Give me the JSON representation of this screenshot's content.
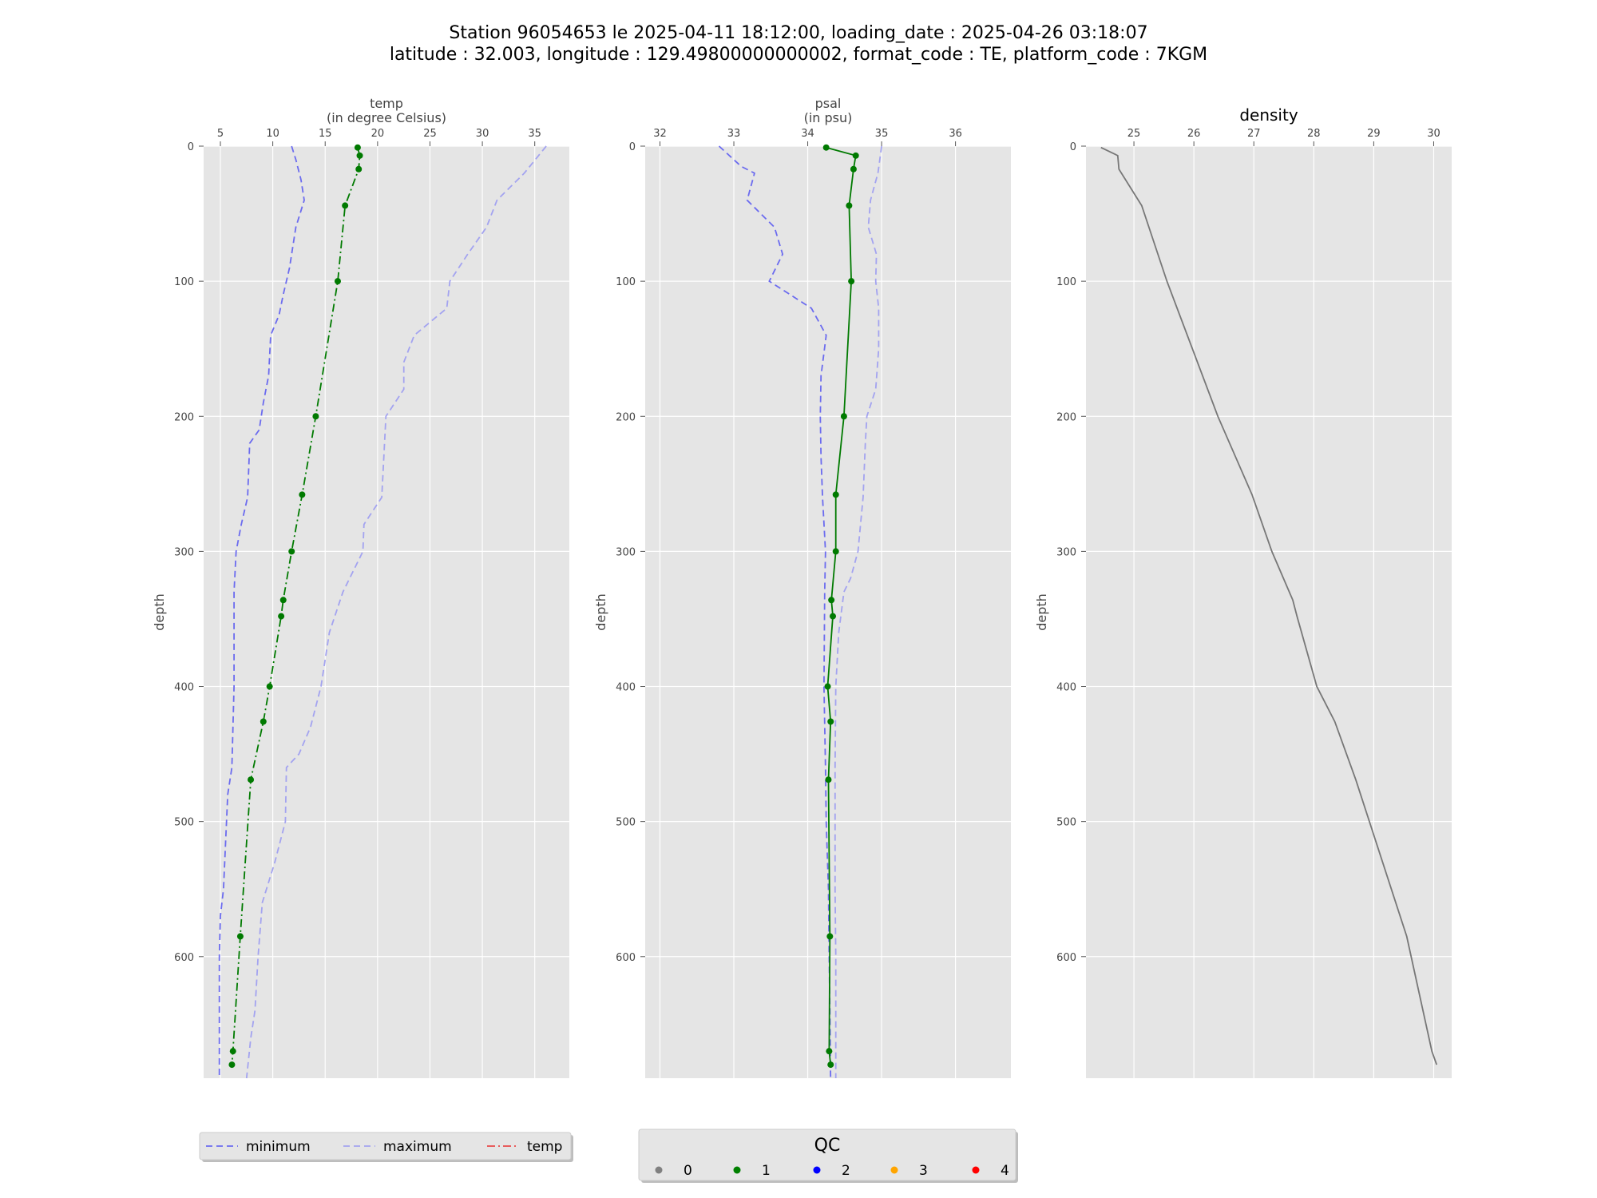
{
  "title": {
    "line1": "Station 96054653 le 2025-04-11 18:12:00, loading_date : 2025-04-26 03:18:07",
    "line2": "latitude : 32.003, longitude : 129.49800000000002, format_code : TE, platform_code : 7KGM"
  },
  "colors": {
    "panel_bg": "#e5e5e5",
    "grid": "#ffffff",
    "minimum": "#6b6bef",
    "maximum": "#a3a3f0",
    "temp_legend": "#e84a4a",
    "profile": "#007a00",
    "density": "#777777"
  },
  "chart_data": [
    {
      "type": "line",
      "name": "temp",
      "xlabel": "temp",
      "xunit": "(in degree Celsius)",
      "ylabel": "depth",
      "xlim": [
        3.4,
        38.3
      ],
      "ylim": [
        690,
        0
      ],
      "x_ticks": [
        5,
        10,
        15,
        20,
        25,
        30,
        35
      ],
      "y_ticks": [
        0,
        100,
        200,
        300,
        400,
        500,
        600
      ],
      "grid": true,
      "series": [
        {
          "name": "minimum",
          "style": "dashed",
          "color_key": "minimum",
          "points": [
            [
              11.8,
              0
            ],
            [
              12.2,
              10
            ],
            [
              12.7,
              25
            ],
            [
              13.0,
              40
            ],
            [
              12.2,
              60
            ],
            [
              11.6,
              90
            ],
            [
              11.0,
              110
            ],
            [
              10.6,
              125
            ],
            [
              9.8,
              140
            ],
            [
              9.6,
              170
            ],
            [
              9.1,
              190
            ],
            [
              8.7,
              210
            ],
            [
              7.8,
              220
            ],
            [
              7.6,
              260
            ],
            [
              7.0,
              280
            ],
            [
              6.5,
              300
            ],
            [
              6.3,
              330
            ],
            [
              6.3,
              400
            ],
            [
              6.1,
              460
            ],
            [
              5.7,
              480
            ],
            [
              5.3,
              550
            ],
            [
              5.0,
              570
            ],
            [
              4.9,
              600
            ],
            [
              4.9,
              640
            ],
            [
              4.9,
              690
            ]
          ]
        },
        {
          "name": "maximum",
          "style": "dashed",
          "color_key": "maximum",
          "points": [
            [
              36.1,
              0
            ],
            [
              34.0,
              20
            ],
            [
              31.4,
              40
            ],
            [
              30.4,
              60
            ],
            [
              28.6,
              80
            ],
            [
              26.9,
              100
            ],
            [
              26.6,
              120
            ],
            [
              23.5,
              140
            ],
            [
              22.5,
              160
            ],
            [
              22.5,
              180
            ],
            [
              20.8,
              200
            ],
            [
              20.6,
              230
            ],
            [
              20.4,
              260
            ],
            [
              18.7,
              280
            ],
            [
              18.6,
              300
            ],
            [
              16.7,
              330
            ],
            [
              15.4,
              360
            ],
            [
              14.6,
              400
            ],
            [
              13.6,
              430
            ],
            [
              12.5,
              450
            ],
            [
              11.3,
              460
            ],
            [
              11.2,
              500
            ],
            [
              10.2,
              530
            ],
            [
              9.0,
              560
            ],
            [
              8.6,
              600
            ],
            [
              8.3,
              640
            ],
            [
              7.9,
              660
            ],
            [
              7.5,
              690
            ]
          ]
        },
        {
          "name": "temp",
          "style": "dashdot",
          "color_key": "profile",
          "markers": true,
          "points": [
            [
              18.1,
              1
            ],
            [
              18.3,
              7
            ],
            [
              18.2,
              17
            ],
            [
              16.9,
              44
            ],
            [
              16.2,
              100
            ],
            [
              14.1,
              200
            ],
            [
              12.8,
              258
            ],
            [
              11.8,
              300
            ],
            [
              11.0,
              336
            ],
            [
              10.8,
              348
            ],
            [
              9.7,
              400
            ],
            [
              9.1,
              426
            ],
            [
              7.9,
              469
            ],
            [
              6.9,
              585
            ],
            [
              6.2,
              670
            ],
            [
              6.1,
              680
            ]
          ]
        }
      ]
    },
    {
      "type": "line",
      "name": "psal",
      "xlabel": "psal",
      "xunit": "(in psu)",
      "ylabel": "depth",
      "xlim": [
        31.8,
        36.75
      ],
      "ylim": [
        690,
        0
      ],
      "x_ticks": [
        32,
        33,
        34,
        35,
        36
      ],
      "y_ticks": [
        0,
        100,
        200,
        300,
        400,
        500,
        600
      ],
      "grid": true,
      "series": [
        {
          "name": "minimum",
          "style": "dashed",
          "color_key": "minimum",
          "points": [
            [
              32.8,
              0
            ],
            [
              33.1,
              15
            ],
            [
              33.28,
              20
            ],
            [
              33.18,
              40
            ],
            [
              33.55,
              60
            ],
            [
              33.66,
              80
            ],
            [
              33.48,
              100
            ],
            [
              34.05,
              120
            ],
            [
              34.25,
              140
            ],
            [
              34.18,
              170
            ],
            [
              34.17,
              200
            ],
            [
              34.18,
              230
            ],
            [
              34.2,
              260
            ],
            [
              34.24,
              300
            ],
            [
              34.23,
              330
            ],
            [
              34.22,
              400
            ],
            [
              34.24,
              460
            ],
            [
              34.25,
              500
            ],
            [
              34.28,
              550
            ],
            [
              34.29,
              600
            ],
            [
              34.3,
              640
            ],
            [
              34.31,
              690
            ]
          ]
        },
        {
          "name": "maximum",
          "style": "dashed",
          "color_key": "maximum",
          "points": [
            [
              35.0,
              0
            ],
            [
              34.95,
              20
            ],
            [
              34.9,
              30
            ],
            [
              34.85,
              40
            ],
            [
              34.82,
              60
            ],
            [
              34.93,
              80
            ],
            [
              34.92,
              100
            ],
            [
              34.96,
              120
            ],
            [
              34.96,
              150
            ],
            [
              34.92,
              180
            ],
            [
              34.8,
              200
            ],
            [
              34.78,
              220
            ],
            [
              34.75,
              260
            ],
            [
              34.68,
              300
            ],
            [
              34.58,
              320
            ],
            [
              34.49,
              330
            ],
            [
              34.42,
              360
            ],
            [
              34.38,
              400
            ],
            [
              34.37,
              460
            ],
            [
              34.37,
              500
            ],
            [
              34.37,
              550
            ],
            [
              34.38,
              600
            ],
            [
              34.38,
              640
            ],
            [
              34.38,
              690
            ]
          ]
        },
        {
          "name": "psal",
          "style": "solid",
          "color_key": "profile",
          "markers": true,
          "points": [
            [
              34.25,
              1
            ],
            [
              34.65,
              7
            ],
            [
              34.62,
              17
            ],
            [
              34.56,
              44
            ],
            [
              34.59,
              100
            ],
            [
              34.49,
              200
            ],
            [
              34.38,
              258
            ],
            [
              34.38,
              300
            ],
            [
              34.32,
              336
            ],
            [
              34.34,
              348
            ],
            [
              34.27,
              400
            ],
            [
              34.31,
              426
            ],
            [
              34.28,
              469
            ],
            [
              34.3,
              585
            ],
            [
              34.29,
              670
            ],
            [
              34.31,
              680
            ]
          ]
        }
      ]
    },
    {
      "type": "line",
      "name": "density",
      "title": "density",
      "ylabel": "depth",
      "xlim": [
        24.2,
        30.3
      ],
      "ylim": [
        690,
        0
      ],
      "x_ticks": [
        25,
        26,
        27,
        28,
        29,
        30
      ],
      "y_ticks": [
        0,
        100,
        200,
        300,
        400,
        500,
        600
      ],
      "grid": true,
      "series": [
        {
          "name": "density",
          "style": "solid",
          "color_key": "density",
          "points": [
            [
              24.45,
              1
            ],
            [
              24.73,
              7
            ],
            [
              24.75,
              17
            ],
            [
              25.13,
              44
            ],
            [
              25.55,
              100
            ],
            [
              26.4,
              200
            ],
            [
              26.97,
              258
            ],
            [
              27.3,
              300
            ],
            [
              27.65,
              336
            ],
            [
              27.72,
              348
            ],
            [
              28.05,
              400
            ],
            [
              28.35,
              426
            ],
            [
              28.7,
              469
            ],
            [
              29.55,
              585
            ],
            [
              29.97,
              670
            ],
            [
              30.05,
              680
            ]
          ]
        }
      ]
    }
  ],
  "legends": {
    "temp": {
      "items": [
        {
          "label": "minimum",
          "style": "dashed",
          "color_key": "minimum"
        },
        {
          "label": "maximum",
          "style": "dashed",
          "color_key": "maximum"
        },
        {
          "label": "temp",
          "style": "dashdot",
          "color_key": "temp_legend"
        }
      ]
    },
    "qc": {
      "title": "QC",
      "items": [
        {
          "label": "0",
          "color": "#808080"
        },
        {
          "label": "1",
          "color": "#008000"
        },
        {
          "label": "2",
          "color": "#0000ff"
        },
        {
          "label": "3",
          "color": "#ffa500"
        },
        {
          "label": "4",
          "color": "#ff0000"
        }
      ]
    }
  }
}
